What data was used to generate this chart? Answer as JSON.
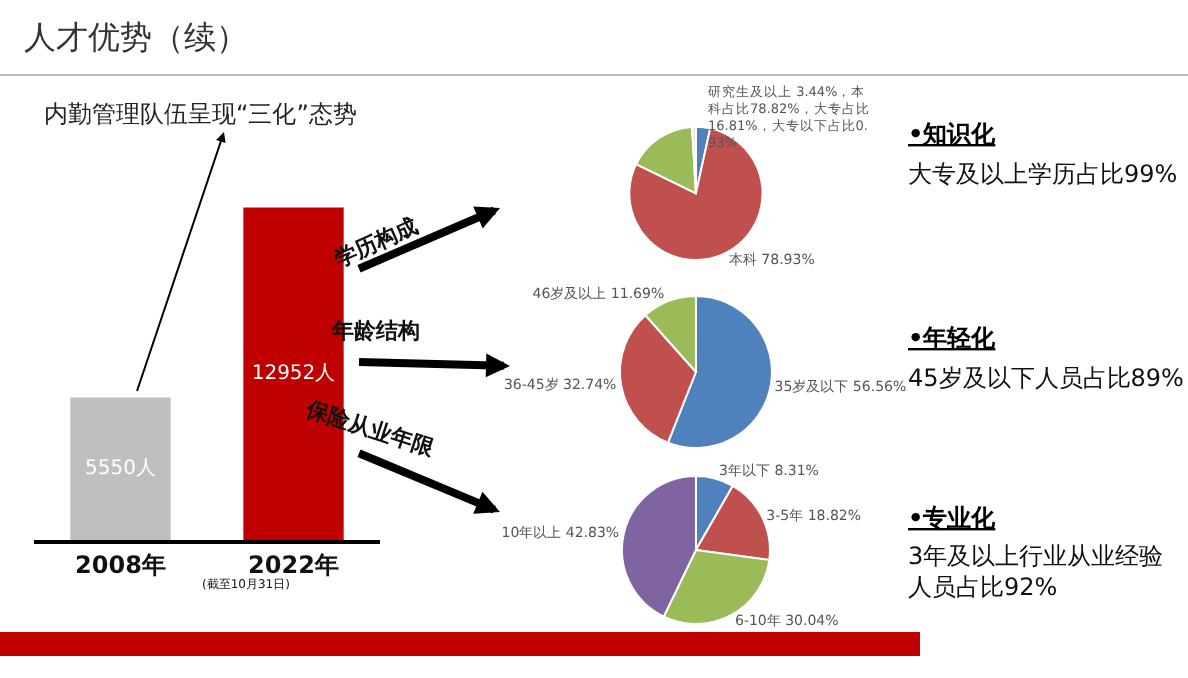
{
  "chart_data": [
    {
      "type": "bar",
      "title": "人才优势（续）",
      "subtitle": "内勤管理队伍呈现“三化”态势",
      "categories": [
        "2008年",
        "2022年"
      ],
      "values": [
        5550,
        12952
      ],
      "colors": [
        "#bfbfbf",
        "#c00000"
      ],
      "value_labels": [
        "5550人",
        "12952人"
      ],
      "annotations": [
        "(截至10月31日)",
        "学历构成",
        "年龄结构",
        "保险从业年限"
      ]
    },
    {
      "type": "pie",
      "categories": [
        null,
        null,
        null,
        null
      ],
      "values": [
        3.44,
        78.82,
        16.81,
        0.93
      ],
      "colors": [
        "#4f81bd",
        "#c0504d",
        "#9bbb59",
        "#e6e6e6"
      ],
      "value_labels": [
        null,
        "本科 78.93%",
        null,
        null
      ],
      "annotations": [
        "研究生及以上 3.44%，本科占比78.82%，大专占比16.81%，大专以下占比0.93%",
        "•知识化",
        "大专及以上学历占比99%"
      ]
    },
    {
      "type": "pie",
      "categories": [
        "35岁及以下",
        "36-45岁",
        "46岁及以上"
      ],
      "values": [
        56.56,
        32.74,
        11.69
      ],
      "colors": [
        "#4f81bd",
        "#c0504d",
        "#9bbb59"
      ],
      "value_labels": [
        "56.56%",
        "32.74%",
        "11.69%"
      ],
      "annotations": [
        "•年轻化",
        "45岁及以下人员占比89%"
      ]
    },
    {
      "type": "pie",
      "categories": [
        "3年以下",
        "3-5年",
        "6-10年",
        "10年以上"
      ],
      "values": [
        8.31,
        18.82,
        30.04,
        42.83
      ],
      "colors": [
        "#4f81bd",
        "#c0504d",
        "#9bbb59",
        "#8064a2"
      ],
      "value_labels": [
        "8.31%",
        "18.82%",
        "30.04%",
        "42.83%"
      ],
      "annotations": [
        "•专业化",
        "3年及以上行业从业经验人员占比92%"
      ]
    }
  ]
}
